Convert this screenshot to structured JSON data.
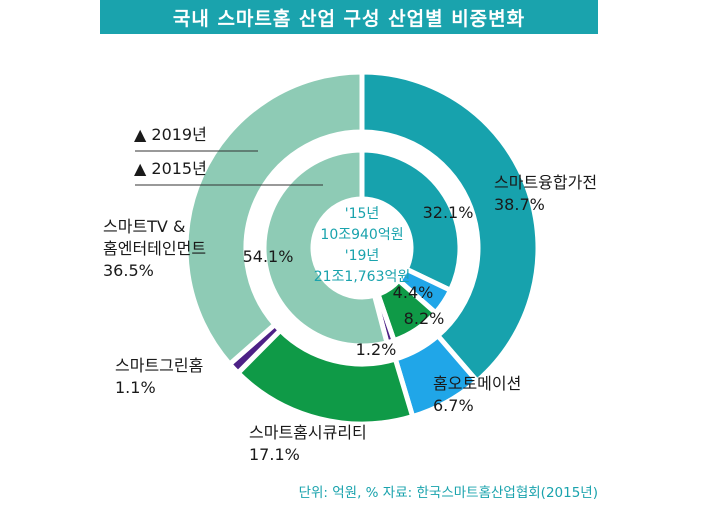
{
  "chart_data": {
    "type": "pie",
    "title": "국내 스마트홈 산업 구성 산업별 비중변화",
    "source": "단위: 억원, % 자료: 한국스마트홈산업협회(2015년)",
    "legend": [
      {
        "label": "▲ 2019년",
        "ring": "outer"
      },
      {
        "label": "▲ 2015년",
        "ring": "inner"
      }
    ],
    "center_labels": [
      "'15년",
      "10조940억원",
      "'19년",
      "21조1,763억원"
    ],
    "categories": [
      "스마트융합가전",
      "홈오토메이션",
      "스마트홈시큐리티",
      "스마트그린홈",
      "스마트TV & 홈엔터테인먼트"
    ],
    "outer_labels": [
      [
        "스마트융합가전",
        "38.7%"
      ],
      [
        "홈오토메이션",
        "6.7%"
      ],
      [
        "스마트홈시큐리티",
        "17.1%"
      ],
      [
        "스마트그린홈",
        "1.1%"
      ],
      [
        "스마트TV &",
        "홈엔터테인먼트",
        "36.5%"
      ]
    ],
    "series": [
      {
        "name": "2019년",
        "values": [
          38.7,
          6.7,
          17.1,
          1.1,
          36.5
        ],
        "labels": [
          "38.7%",
          "6.7%",
          "17.1%",
          "1.1%",
          "36.5%"
        ]
      },
      {
        "name": "2015년",
        "values": [
          32.1,
          4.4,
          8.2,
          1.2,
          54.1
        ],
        "labels": [
          "32.1%",
          "4.4%",
          "8.2%",
          "1.2%",
          "54.1%"
        ]
      }
    ],
    "colors": [
      "#17a2ad",
      "#20a6e8",
      "#0f9a47",
      "#4d2186",
      "#8ecbb5"
    ]
  }
}
